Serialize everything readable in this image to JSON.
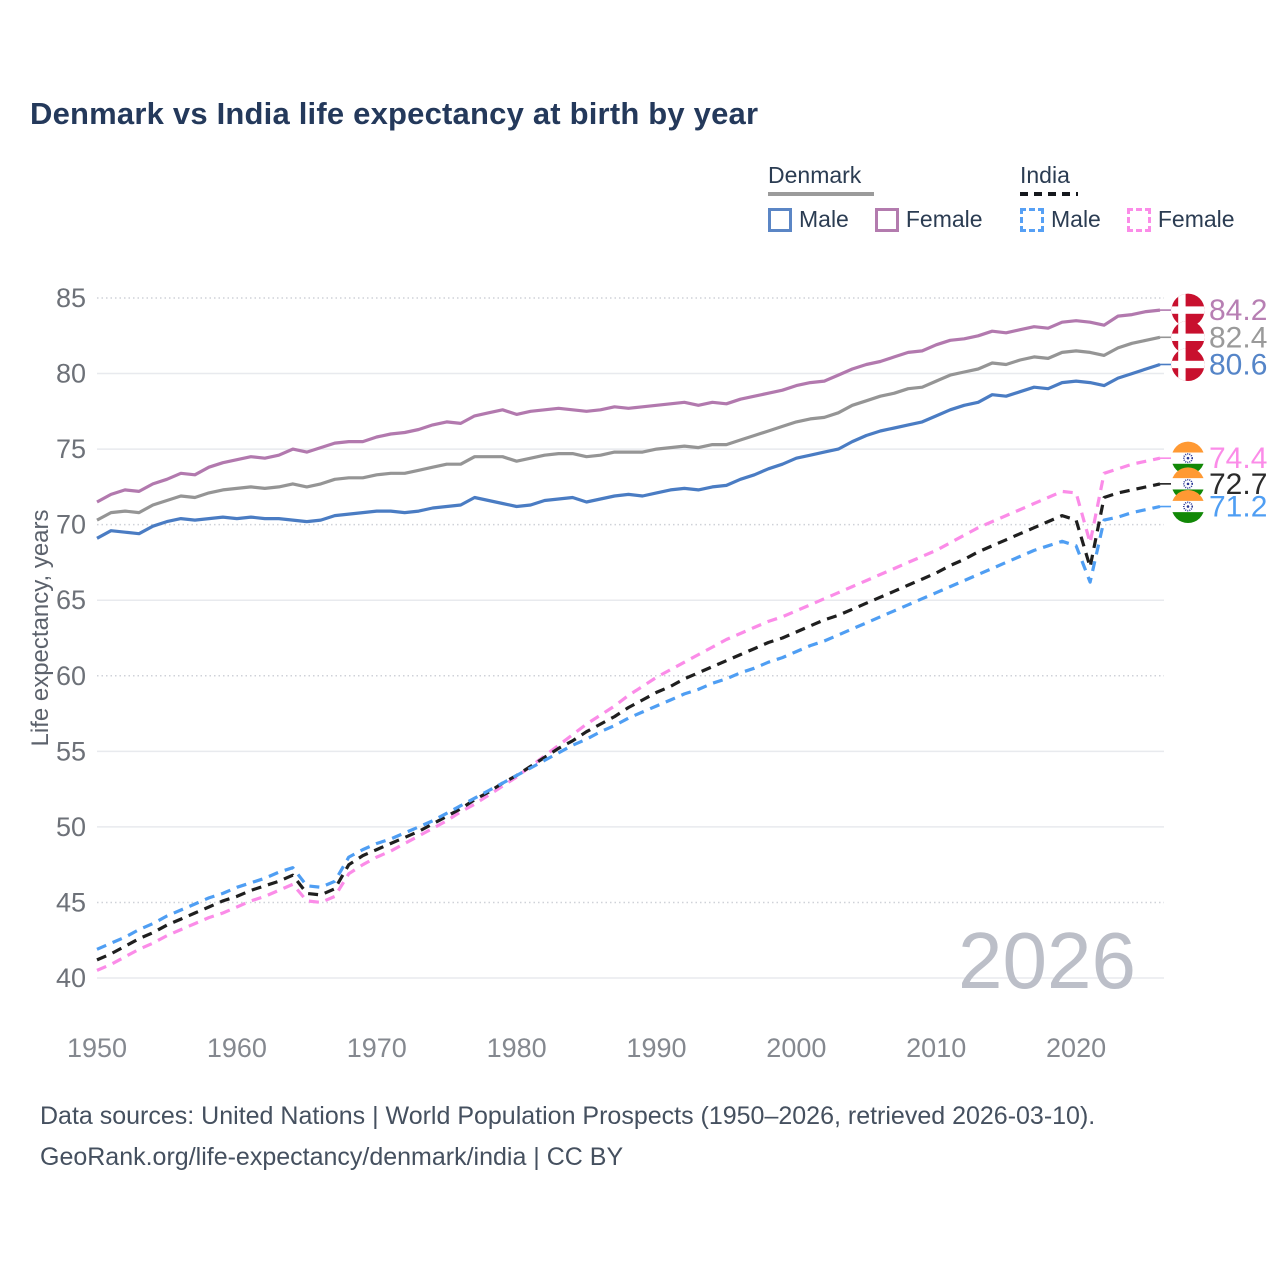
{
  "title": "Denmark vs India life expectancy at birth by year",
  "legend": {
    "groups": [
      {
        "label": "Denmark",
        "style": "solid",
        "items": [
          {
            "label": "Male",
            "color": "#5b86c5"
          },
          {
            "label": "Female",
            "color": "#b37bae"
          }
        ]
      },
      {
        "label": "India",
        "style": "dashed",
        "items": [
          {
            "label": "Male",
            "color": "#56a0f5"
          },
          {
            "label": "Female",
            "color": "#fb8ce8"
          }
        ]
      }
    ]
  },
  "watermark": "2026",
  "footer": {
    "line1": "Data sources: United Nations | World Population Prospects (1950–2026, retrieved 2026-03-10).",
    "line2": "GeoRank.org/life-expectancy/denmark/india | CC BY"
  },
  "chart_data": {
    "type": "line",
    "title": "Denmark vs India life expectancy at birth by year",
    "xlabel": "",
    "ylabel": "Life expectancy, years",
    "x_start": 1950,
    "x_end": 2026,
    "xlim": [
      1950,
      2026
    ],
    "ylim": [
      40,
      85
    ],
    "x_ticks": [
      1950,
      1960,
      1970,
      1980,
      1990,
      2000,
      2010,
      2020
    ],
    "y_ticks": [
      40,
      45,
      50,
      55,
      60,
      65,
      70,
      75,
      80,
      85
    ],
    "dotted_gridlines": [
      45,
      60,
      70,
      85
    ],
    "grid": "horizontal",
    "legend_position": "top-right",
    "series": [
      {
        "name": "Denmark Female",
        "color": "#b279ae",
        "label_color": "#b77fb3",
        "dashed": false,
        "flag": "dk",
        "end_label": "84.2",
        "values": [
          71.5,
          72.0,
          72.3,
          72.2,
          72.7,
          73.0,
          73.4,
          73.3,
          73.8,
          74.1,
          74.3,
          74.5,
          74.4,
          74.6,
          75.0,
          74.8,
          75.1,
          75.4,
          75.5,
          75.5,
          75.8,
          76.0,
          76.1,
          76.3,
          76.6,
          76.8,
          76.7,
          77.2,
          77.4,
          77.6,
          77.3,
          77.5,
          77.6,
          77.7,
          77.6,
          77.5,
          77.6,
          77.8,
          77.7,
          77.8,
          77.9,
          78.0,
          78.1,
          77.9,
          78.1,
          78.0,
          78.3,
          78.5,
          78.7,
          78.9,
          79.2,
          79.4,
          79.5,
          79.9,
          80.3,
          80.6,
          80.8,
          81.1,
          81.4,
          81.5,
          81.9,
          82.2,
          82.3,
          82.5,
          82.8,
          82.7,
          82.9,
          83.1,
          83.0,
          83.4,
          83.5,
          83.4,
          83.2,
          83.8,
          83.9,
          84.1,
          84.2
        ]
      },
      {
        "name": "Denmark Total",
        "color": "#959595",
        "label_color": "#9a9a9a",
        "dashed": false,
        "flag": "dk",
        "end_label": "82.4",
        "values": [
          70.3,
          70.8,
          70.9,
          70.8,
          71.3,
          71.6,
          71.9,
          71.8,
          72.1,
          72.3,
          72.4,
          72.5,
          72.4,
          72.5,
          72.7,
          72.5,
          72.7,
          73.0,
          73.1,
          73.1,
          73.3,
          73.4,
          73.4,
          73.6,
          73.8,
          74.0,
          74.0,
          74.5,
          74.5,
          74.5,
          74.2,
          74.4,
          74.6,
          74.7,
          74.7,
          74.5,
          74.6,
          74.8,
          74.8,
          74.8,
          75.0,
          75.1,
          75.2,
          75.1,
          75.3,
          75.3,
          75.6,
          75.9,
          76.2,
          76.5,
          76.8,
          77.0,
          77.1,
          77.4,
          77.9,
          78.2,
          78.5,
          78.7,
          79.0,
          79.1,
          79.5,
          79.9,
          80.1,
          80.3,
          80.7,
          80.6,
          80.9,
          81.1,
          81.0,
          81.4,
          81.5,
          81.4,
          81.2,
          81.7,
          82.0,
          82.2,
          82.4
        ]
      },
      {
        "name": "Denmark Male",
        "color": "#4a7cc3",
        "label_color": "#5585c8",
        "dashed": false,
        "flag": "dk",
        "end_label": "80.6",
        "values": [
          69.1,
          69.6,
          69.5,
          69.4,
          69.9,
          70.2,
          70.4,
          70.3,
          70.4,
          70.5,
          70.4,
          70.5,
          70.4,
          70.4,
          70.3,
          70.2,
          70.3,
          70.6,
          70.7,
          70.8,
          70.9,
          70.9,
          70.8,
          70.9,
          71.1,
          71.2,
          71.3,
          71.8,
          71.6,
          71.4,
          71.2,
          71.3,
          71.6,
          71.7,
          71.8,
          71.5,
          71.7,
          71.9,
          72.0,
          71.9,
          72.1,
          72.3,
          72.4,
          72.3,
          72.5,
          72.6,
          73.0,
          73.3,
          73.7,
          74.0,
          74.4,
          74.6,
          74.8,
          75.0,
          75.5,
          75.9,
          76.2,
          76.4,
          76.6,
          76.8,
          77.2,
          77.6,
          77.9,
          78.1,
          78.6,
          78.5,
          78.8,
          79.1,
          79.0,
          79.4,
          79.5,
          79.4,
          79.2,
          79.7,
          80.0,
          80.3,
          80.6
        ]
      },
      {
        "name": "India Female",
        "color": "#fb8ce8",
        "label_color": "#fb8ce8",
        "dashed": true,
        "flag": "in",
        "end_label": "74.4",
        "values": [
          40.5,
          40.9,
          41.4,
          41.9,
          42.3,
          42.8,
          43.2,
          43.6,
          44.0,
          44.3,
          44.7,
          45.1,
          45.4,
          45.8,
          46.2,
          45.1,
          45.0,
          45.4,
          46.9,
          47.5,
          48.0,
          48.4,
          48.9,
          49.4,
          49.9,
          50.4,
          51.0,
          51.5,
          52.1,
          52.7,
          53.3,
          54.0,
          54.7,
          55.4,
          56.1,
          56.8,
          57.4,
          58.0,
          58.7,
          59.3,
          59.9,
          60.4,
          60.9,
          61.4,
          61.9,
          62.4,
          62.8,
          63.2,
          63.6,
          63.9,
          64.3,
          64.7,
          65.1,
          65.5,
          65.9,
          66.3,
          66.7,
          67.1,
          67.5,
          67.9,
          68.3,
          68.8,
          69.3,
          69.8,
          70.2,
          70.6,
          71.0,
          71.4,
          71.8,
          72.2,
          72.1,
          68.8,
          73.4,
          73.7,
          74.0,
          74.2,
          74.4
        ]
      },
      {
        "name": "India Total",
        "color": "#1f1f1f",
        "label_color": "#2b2b2b",
        "dashed": true,
        "flag": "in",
        "end_label": "72.7",
        "values": [
          41.2,
          41.6,
          42.1,
          42.6,
          43.0,
          43.5,
          43.9,
          44.3,
          44.7,
          45.1,
          45.4,
          45.8,
          46.1,
          46.4,
          46.8,
          45.6,
          45.5,
          45.9,
          47.5,
          48.1,
          48.5,
          48.9,
          49.3,
          49.7,
          50.2,
          50.7,
          51.2,
          51.8,
          52.3,
          52.9,
          53.4,
          54.0,
          54.6,
          55.2,
          55.7,
          56.3,
          56.8,
          57.3,
          57.9,
          58.4,
          58.9,
          59.3,
          59.8,
          60.2,
          60.6,
          61.0,
          61.4,
          61.8,
          62.2,
          62.5,
          62.9,
          63.3,
          63.7,
          64.0,
          64.4,
          64.8,
          65.2,
          65.6,
          66.0,
          66.4,
          66.8,
          67.3,
          67.7,
          68.2,
          68.6,
          69.0,
          69.4,
          69.8,
          70.2,
          70.6,
          70.3,
          67.2,
          71.8,
          72.1,
          72.3,
          72.5,
          72.7
        ]
      },
      {
        "name": "India Male",
        "color": "#4f9ef3",
        "label_color": "#4f9ef3",
        "dashed": true,
        "flag": "in",
        "end_label": "71.2",
        "values": [
          41.9,
          42.3,
          42.7,
          43.2,
          43.6,
          44.1,
          44.5,
          44.9,
          45.3,
          45.6,
          46.0,
          46.3,
          46.6,
          47.0,
          47.3,
          46.1,
          46.0,
          46.4,
          48.0,
          48.5,
          48.9,
          49.2,
          49.6,
          50.0,
          50.4,
          50.9,
          51.4,
          51.9,
          52.4,
          52.9,
          53.4,
          53.9,
          54.4,
          54.9,
          55.4,
          55.8,
          56.3,
          56.7,
          57.2,
          57.6,
          58.0,
          58.4,
          58.8,
          59.1,
          59.5,
          59.8,
          60.2,
          60.5,
          60.9,
          61.2,
          61.6,
          62.0,
          62.3,
          62.7,
          63.1,
          63.5,
          63.9,
          64.3,
          64.7,
          65.1,
          65.5,
          65.9,
          66.3,
          66.7,
          67.1,
          67.5,
          67.9,
          68.3,
          68.6,
          68.9,
          68.6,
          66.2,
          70.3,
          70.5,
          70.8,
          71.0,
          71.2
        ]
      }
    ]
  }
}
